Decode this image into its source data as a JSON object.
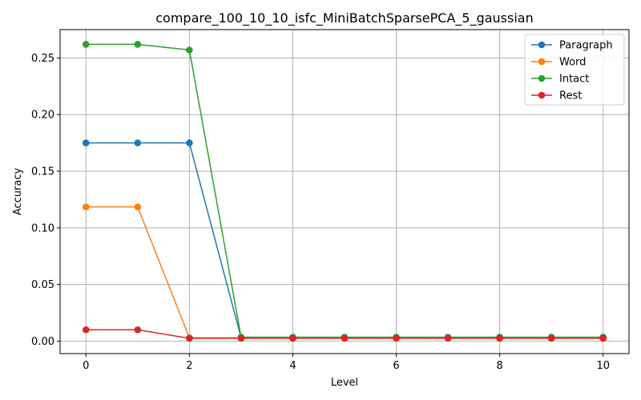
{
  "chart_data": {
    "type": "line",
    "title": "compare_100_10_10_isfc_MiniBatchSparsePCA_5_gaussian",
    "xlabel": "Level",
    "ylabel": "Accuracy",
    "x": [
      0,
      1,
      2,
      3,
      4,
      5,
      6,
      7,
      8,
      9,
      10
    ],
    "xlim": [
      -0.5,
      10.5
    ],
    "ylim": [
      -0.011,
      0.275
    ],
    "xticks": [
      0,
      2,
      4,
      6,
      8,
      10
    ],
    "yticks": [
      0.0,
      0.05,
      0.1,
      0.15,
      0.2,
      0.25
    ],
    "ytick_labels": [
      "0.00",
      "0.05",
      "0.10",
      "0.15",
      "0.20",
      "0.25"
    ],
    "grid": true,
    "legend_position": "top-right",
    "series": [
      {
        "name": "Paragraph",
        "color": "#1f77b4",
        "values": [
          0.175,
          0.175,
          0.175,
          0.003,
          0.003,
          0.003,
          0.003,
          0.003,
          0.003,
          0.003,
          0.003
        ]
      },
      {
        "name": "Word",
        "color": "#ff7f0e",
        "values": [
          0.1185,
          0.1185,
          0.003,
          0.003,
          0.003,
          0.003,
          0.003,
          0.003,
          0.003,
          0.003,
          0.003
        ]
      },
      {
        "name": "Intact",
        "color": "#2ca02c",
        "values": [
          0.262,
          0.262,
          0.257,
          0.0035,
          0.0035,
          0.0035,
          0.0035,
          0.0035,
          0.0035,
          0.0035,
          0.0035
        ]
      },
      {
        "name": "Rest",
        "color": "#d62728",
        "values": [
          0.01,
          0.01,
          0.0025,
          0.0025,
          0.0025,
          0.0025,
          0.0025,
          0.0025,
          0.0025,
          0.0025,
          0.0025
        ]
      }
    ]
  }
}
